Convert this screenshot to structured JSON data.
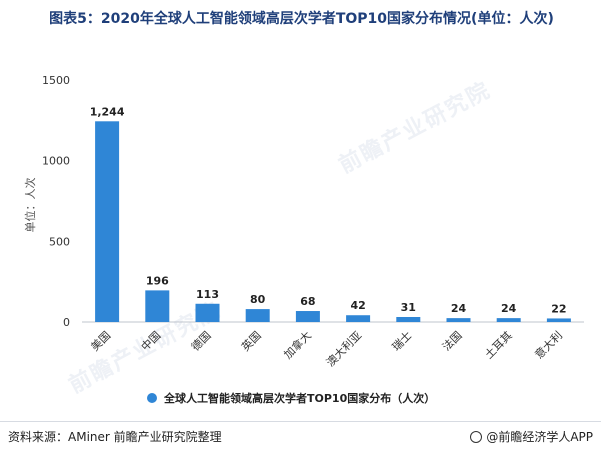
{
  "chart_data": {
    "type": "bar",
    "title": "图表5：2020年全球人工智能领域高层次学者TOP10国家分布情况(单位：人次)",
    "ylabel": "单位：人次",
    "ylim": [
      0,
      1500
    ],
    "yticks": [
      "0",
      "500",
      "1000",
      "1500"
    ],
    "categories": [
      "美国",
      "中国",
      "德国",
      "英国",
      "加拿大",
      "澳大利亚",
      "瑞士",
      "法国",
      "土耳其",
      "意大利"
    ],
    "values": [
      1244,
      196,
      113,
      80,
      68,
      42,
      31,
      24,
      24,
      22
    ],
    "value_labels": [
      "1,244",
      "196",
      "113",
      "80",
      "68",
      "42",
      "31",
      "24",
      "24",
      "22"
    ],
    "legend": "全球人工智能领域高层次学者TOP10国家分布（人次）",
    "legend_position": "bottom",
    "bar_color": "#2f86d6",
    "grid": false
  },
  "watermark": "前瞻产业研究院",
  "footer": {
    "source": "资料来源：AMiner 前瞻产业研究院整理",
    "brand": "@前瞻经济学人APP"
  }
}
